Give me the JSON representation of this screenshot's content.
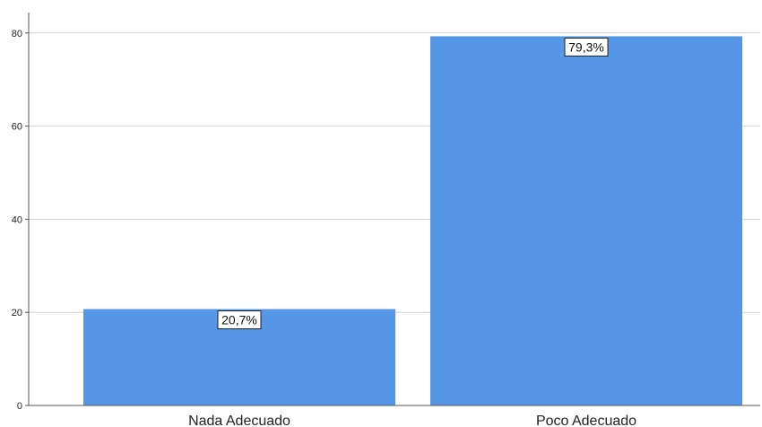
{
  "chart_data": {
    "type": "bar",
    "categories": [
      "Nada Adecuado",
      "Poco Adecuado"
    ],
    "values": [
      20.7,
      79.3
    ],
    "data_labels": [
      "20,7%",
      "79,3%"
    ],
    "title": "",
    "xlabel": "",
    "ylabel": "",
    "ylim": [
      0,
      85
    ],
    "yticks": [
      0,
      20,
      40,
      60,
      80
    ],
    "ytick_labels": [
      "0",
      "20",
      "40",
      "60",
      "80"
    ],
    "grid": true,
    "legend": "none",
    "bar_color": "#5596e6",
    "gridline_color": "#d2d2d2",
    "axis_color": "#555555"
  }
}
